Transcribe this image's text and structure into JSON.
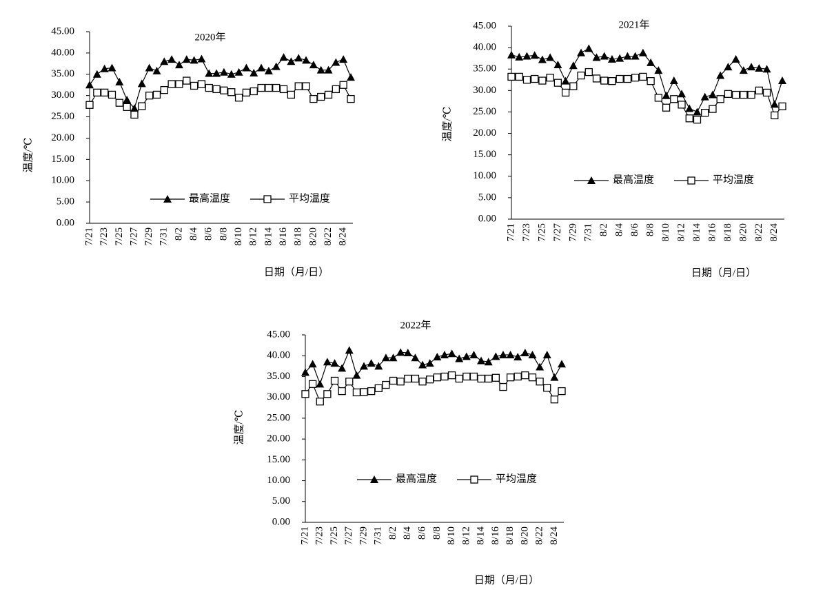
{
  "chart_data": [
    {
      "type": "line",
      "title": "2020年",
      "x_label": "日期（月/日）",
      "y_label": "温度/℃",
      "categories": [
        "7/21",
        null,
        "7/23",
        null,
        "7/25",
        null,
        "7/27",
        null,
        "7/29",
        null,
        "7/31",
        null,
        "8/2",
        null,
        "8/4",
        null,
        "8/6",
        null,
        "8/8",
        null,
        "8/10",
        null,
        "8/12",
        null,
        "8/14",
        null,
        "8/16",
        null,
        "8/18",
        null,
        "8/20",
        null,
        "8/22",
        null,
        "8/24",
        null
      ],
      "ylim": [
        0,
        45
      ],
      "yticks": [
        {
          "value": 0,
          "label": "0.00"
        },
        {
          "value": 5,
          "label": "5.00"
        },
        {
          "value": 10,
          "label": "10.00"
        },
        {
          "value": 15,
          "label": "15.00"
        },
        {
          "value": 20,
          "label": "20.00"
        },
        {
          "value": 25,
          "label": "25.00"
        },
        {
          "value": 30,
          "label": "30.00"
        },
        {
          "value": 35,
          "label": "35.00"
        },
        {
          "value": 40,
          "label": "40.00"
        },
        {
          "value": 45,
          "label": "45.00"
        }
      ],
      "series": [
        {
          "name": "最高温度",
          "color": "#000000",
          "marker": "triangle",
          "values": [
            32.5,
            35,
            36.3,
            36.5,
            33.2,
            29,
            27,
            32.8,
            36.5,
            35.8,
            38,
            38.5,
            37.2,
            38.5,
            38.3,
            38.6,
            35.2,
            35.2,
            35.5,
            35,
            35.5,
            36.5,
            35.3,
            36.5,
            35.8,
            36.8,
            39,
            38,
            38.8,
            38.3,
            37.2,
            36,
            36,
            37.8,
            38.5,
            34.3
          ]
        },
        {
          "name": "平均温度",
          "color": "#000000",
          "marker": "square",
          "values": [
            27.8,
            30.7,
            30.7,
            30.2,
            28.3,
            27.3,
            25.5,
            27.5,
            30,
            30.2,
            31.3,
            32.7,
            32.7,
            33.5,
            32.3,
            32.7,
            31.8,
            31.5,
            31.2,
            30.8,
            29.5,
            30.7,
            31,
            31.8,
            31.8,
            31.8,
            31.5,
            30.2,
            32.2,
            32.2,
            29.2,
            29.7,
            30.2,
            31.5,
            32.5,
            29.2
          ]
        }
      ]
    },
    {
      "type": "line",
      "title": "2021年",
      "x_label": "日期（月/日）",
      "y_label": "温度/℃",
      "categories": [
        "7/21",
        null,
        "7/23",
        null,
        "7/25",
        null,
        "7/27",
        null,
        "7/29",
        null,
        "7/31",
        null,
        "8/2",
        null,
        "8/4",
        null,
        "8/6",
        null,
        "8/8",
        null,
        "8/10",
        null,
        "8/12",
        null,
        "8/14",
        null,
        "8/16",
        null,
        "8/18",
        null,
        "8/20",
        null,
        "8/22",
        null,
        "8/24",
        null
      ],
      "ylim": [
        0,
        45
      ],
      "yticks": [
        {
          "value": 0,
          "label": "0.00"
        },
        {
          "value": 5,
          "label": "5.00"
        },
        {
          "value": 10,
          "label": "10.00"
        },
        {
          "value": 15,
          "label": "15.00"
        },
        {
          "value": 20,
          "label": "20.00"
        },
        {
          "value": 25,
          "label": "25.00"
        },
        {
          "value": 30,
          "label": "30.00"
        },
        {
          "value": 35,
          "label": "35.00"
        },
        {
          "value": 40,
          "label": "40.00"
        },
        {
          "value": 45,
          "label": "45.00"
        }
      ],
      "series": [
        {
          "name": "最高温度",
          "color": "#000000",
          "marker": "triangle",
          "values": [
            38.3,
            37.8,
            38,
            38.2,
            37.2,
            37.7,
            36,
            32.2,
            35.8,
            38.8,
            39.8,
            37.7,
            38,
            37.3,
            37.5,
            38,
            38,
            38.8,
            36.5,
            34.7,
            28.8,
            32.3,
            29.2,
            25.8,
            25,
            28.5,
            29,
            33.5,
            35.5,
            37.3,
            34.7,
            35.5,
            35.2,
            35,
            26.8,
            32.3
          ]
        },
        {
          "name": "平均温度",
          "color": "#000000",
          "marker": "square",
          "values": [
            33.2,
            33.2,
            32.5,
            32.7,
            32.3,
            33,
            31.8,
            29.5,
            31,
            33.5,
            34.3,
            32.8,
            32.3,
            32.2,
            32.7,
            32.7,
            33,
            33.2,
            32.2,
            28.3,
            26,
            28,
            26.7,
            23.5,
            23.2,
            24.8,
            25.7,
            28,
            29.2,
            29,
            29,
            29,
            30,
            29.5,
            24.2,
            26.3
          ]
        }
      ]
    },
    {
      "type": "line",
      "title": "2022年",
      "x_label": "日期（月/日）",
      "y_label": "温度/℃",
      "categories": [
        "7/21",
        null,
        "7/23",
        null,
        "7/25",
        null,
        "7/27",
        null,
        "7/29",
        null,
        "7/31",
        null,
        "8/2",
        null,
        "8/4",
        null,
        "8/6",
        null,
        "8/8",
        null,
        "8/10",
        null,
        "8/12",
        null,
        "8/14",
        null,
        "8/16",
        null,
        "8/18",
        null,
        "8/20",
        null,
        "8/22",
        null,
        "8/24",
        null
      ],
      "ylim": [
        0,
        45
      ],
      "yticks": [
        {
          "value": 0,
          "label": "0.00"
        },
        {
          "value": 5,
          "label": "5.00"
        },
        {
          "value": 10,
          "label": "10.00"
        },
        {
          "value": 15,
          "label": "15.00"
        },
        {
          "value": 20,
          "label": "20.00"
        },
        {
          "value": 25,
          "label": "25.00"
        },
        {
          "value": 30,
          "label": "30.00"
        },
        {
          "value": 35,
          "label": "35.00"
        },
        {
          "value": 40,
          "label": "40.00"
        },
        {
          "value": 45,
          "label": "45.00"
        }
      ],
      "series": [
        {
          "name": "最高温度",
          "color": "#000000",
          "marker": "triangle",
          "values": [
            36,
            38,
            33.2,
            38.5,
            38.2,
            37,
            41.3,
            35.3,
            37.5,
            38.2,
            37.5,
            39.5,
            39.5,
            40.8,
            40.7,
            39.5,
            37.8,
            38.2,
            39.7,
            40.2,
            40.5,
            39.3,
            39.8,
            40.2,
            38.8,
            38.5,
            39.8,
            40.2,
            40.2,
            39.7,
            40.7,
            40.2,
            37.3,
            40.2,
            34.8,
            38
          ]
        },
        {
          "name": "平均温度",
          "color": "#000000",
          "marker": "square",
          "values": [
            30.8,
            33.2,
            29,
            30.8,
            34,
            31.5,
            33.8,
            31.2,
            31.3,
            31.5,
            32.2,
            33,
            34,
            33.8,
            34.5,
            34.5,
            33.8,
            34.3,
            34.8,
            35,
            35.3,
            34.5,
            35,
            35,
            34.5,
            34.5,
            34.7,
            32.5,
            34.8,
            35,
            35.3,
            34.8,
            33.8,
            32.3,
            29.5,
            31.5
          ]
        }
      ]
    }
  ]
}
